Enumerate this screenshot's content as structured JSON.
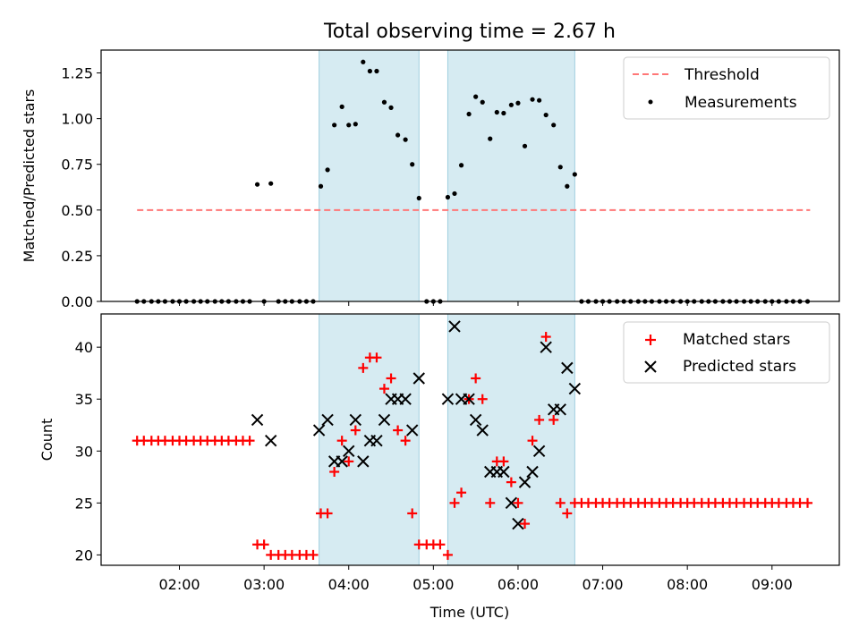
{
  "chart_data": [
    {
      "type": "scatter",
      "title": "Total observing time = 2.67 h",
      "xlabel": "",
      "ylabel": "Matched/Predicted stars",
      "ylim": [
        0,
        1.375
      ],
      "yticks": [
        "0.00",
        "0.25",
        "0.50",
        "0.75",
        "1.00",
        "1.25"
      ],
      "legend_position": "top-right",
      "shaded_intervals_hours": [
        [
          3.65,
          4.83
        ],
        [
          5.17,
          6.67
        ]
      ],
      "threshold": {
        "name": "Threshold",
        "value": 0.5,
        "x_range": [
          1.5,
          9.45
        ],
        "color": "#ff7777"
      },
      "measurements": {
        "name": "Measurements",
        "color": "#000000",
        "x": [
          1.5,
          1.58,
          1.67,
          1.75,
          1.83,
          1.92,
          2.0,
          2.08,
          2.17,
          2.25,
          2.33,
          2.42,
          2.5,
          2.58,
          2.67,
          2.75,
          2.83,
          2.92,
          3.0,
          3.08,
          3.17,
          3.25,
          3.33,
          3.42,
          3.5,
          3.58,
          3.67,
          3.75,
          3.83,
          3.92,
          4.0,
          4.08,
          4.17,
          4.25,
          4.33,
          4.42,
          4.5,
          4.58,
          4.67,
          4.75,
          4.83,
          4.92,
          5.0,
          5.08,
          5.17,
          5.25,
          5.33,
          5.42,
          5.5,
          5.58,
          5.67,
          5.75,
          5.83,
          5.92,
          6.0,
          6.08,
          6.17,
          6.25,
          6.33,
          6.42,
          6.5,
          6.58,
          6.67,
          6.75,
          6.83,
          6.92,
          7.0,
          7.08,
          7.17,
          7.25,
          7.33,
          7.42,
          7.5,
          7.58,
          7.67,
          7.75,
          7.83,
          7.92,
          8.0,
          8.08,
          8.17,
          8.25,
          8.33,
          8.42,
          8.5,
          8.58,
          8.67,
          8.75,
          8.83,
          8.92,
          9.0,
          9.08,
          9.17,
          9.25,
          9.33,
          9.42
        ],
        "y": [
          0,
          0,
          0,
          0,
          0,
          0,
          0,
          0,
          0,
          0,
          0,
          0,
          0,
          0,
          0,
          0,
          0,
          0.64,
          0,
          0.645,
          0,
          0,
          0,
          0,
          0,
          0,
          0.63,
          0.72,
          0.965,
          1.065,
          0.965,
          0.97,
          1.31,
          1.26,
          1.26,
          1.09,
          1.06,
          0.91,
          0.885,
          0.75,
          0.565,
          0,
          0,
          0,
          0.57,
          0.59,
          0.745,
          1.025,
          1.12,
          1.09,
          0.89,
          1.035,
          1.03,
          1.075,
          1.085,
          0.85,
          1.105,
          1.1,
          1.02,
          0.965,
          0.735,
          0.63,
          0.695,
          0,
          0,
          0,
          0,
          0,
          0,
          0,
          0,
          0,
          0,
          0,
          0,
          0,
          0,
          0,
          0,
          0,
          0,
          0,
          0,
          0,
          0,
          0,
          0,
          0,
          0,
          0,
          0,
          0,
          0,
          0,
          0,
          0
        ]
      }
    },
    {
      "type": "scatter",
      "title": "",
      "xlabel": "Time (UTC)",
      "ylabel": "Count",
      "ylim": [
        19,
        43.2
      ],
      "yticks": [
        "20",
        "25",
        "30",
        "35",
        "40"
      ],
      "xticks": [
        "02:00",
        "03:00",
        "04:00",
        "05:00",
        "06:00",
        "07:00",
        "08:00",
        "09:00"
      ],
      "legend_position": "top-right",
      "shaded_intervals_hours": [
        [
          3.65,
          4.83
        ],
        [
          5.17,
          6.67
        ]
      ],
      "series": [
        {
          "name": "Matched stars",
          "marker": "plus",
          "color": "#ff0000",
          "x": [
            1.5,
            1.58,
            1.67,
            1.75,
            1.83,
            1.92,
            2.0,
            2.08,
            2.17,
            2.25,
            2.33,
            2.42,
            2.5,
            2.58,
            2.67,
            2.75,
            2.83,
            2.92,
            3.0,
            3.08,
            3.17,
            3.25,
            3.33,
            3.42,
            3.5,
            3.58,
            3.67,
            3.75,
            3.83,
            3.92,
            4.0,
            4.08,
            4.17,
            4.25,
            4.33,
            4.42,
            4.5,
            4.58,
            4.67,
            4.75,
            4.83,
            4.92,
            5.0,
            5.08,
            5.17,
            5.25,
            5.33,
            5.42,
            5.5,
            5.58,
            5.67,
            5.75,
            5.83,
            5.92,
            6.0,
            6.08,
            6.17,
            6.25,
            6.33,
            6.42,
            6.5,
            6.58,
            6.67,
            6.75,
            6.83,
            6.92,
            7.0,
            7.08,
            7.17,
            7.25,
            7.33,
            7.42,
            7.5,
            7.58,
            7.67,
            7.75,
            7.83,
            7.92,
            8.0,
            8.08,
            8.17,
            8.25,
            8.33,
            8.42,
            8.5,
            8.58,
            8.67,
            8.75,
            8.83,
            8.92,
            9.0,
            9.08,
            9.17,
            9.25,
            9.33,
            9.42
          ],
          "y": [
            31,
            31,
            31,
            31,
            31,
            31,
            31,
            31,
            31,
            31,
            31,
            31,
            31,
            31,
            31,
            31,
            31,
            21,
            21,
            20,
            20,
            20,
            20,
            20,
            20,
            20,
            24,
            24,
            28,
            31,
            29,
            32,
            38,
            39,
            39,
            36,
            37,
            32,
            31,
            24,
            21,
            21,
            21,
            21,
            20,
            25,
            26,
            35,
            37,
            35,
            25,
            29,
            29,
            27,
            25,
            23,
            31,
            33,
            41,
            33,
            25,
            24,
            25,
            25,
            25,
            25,
            25,
            25,
            25,
            25,
            25,
            25,
            25,
            25,
            25,
            25,
            25,
            25,
            25,
            25,
            25,
            25,
            25,
            25,
            25,
            25,
            25,
            25,
            25,
            25,
            25,
            25,
            25,
            25,
            25,
            25
          ]
        },
        {
          "name": "Predicted stars",
          "marker": "x",
          "color": "#000000",
          "x": [
            2.92,
            3.08,
            3.65,
            3.75,
            3.83,
            3.92,
            4.0,
            4.08,
            4.17,
            4.25,
            4.33,
            4.42,
            4.5,
            4.58,
            4.67,
            4.75,
            4.83,
            5.17,
            5.25,
            5.33,
            5.42,
            5.5,
            5.58,
            5.67,
            5.75,
            5.83,
            5.92,
            6.0,
            6.08,
            6.17,
            6.25,
            6.33,
            6.42,
            6.5,
            6.58,
            6.67
          ],
          "y": [
            33,
            31,
            32,
            33,
            29,
            29,
            30,
            33,
            29,
            31,
            31,
            33,
            35,
            35,
            35,
            32,
            37,
            35,
            42,
            35,
            35,
            33,
            32,
            28,
            28,
            28,
            25,
            23,
            27,
            28,
            30,
            40,
            34,
            34,
            38,
            36
          ]
        }
      ]
    }
  ]
}
